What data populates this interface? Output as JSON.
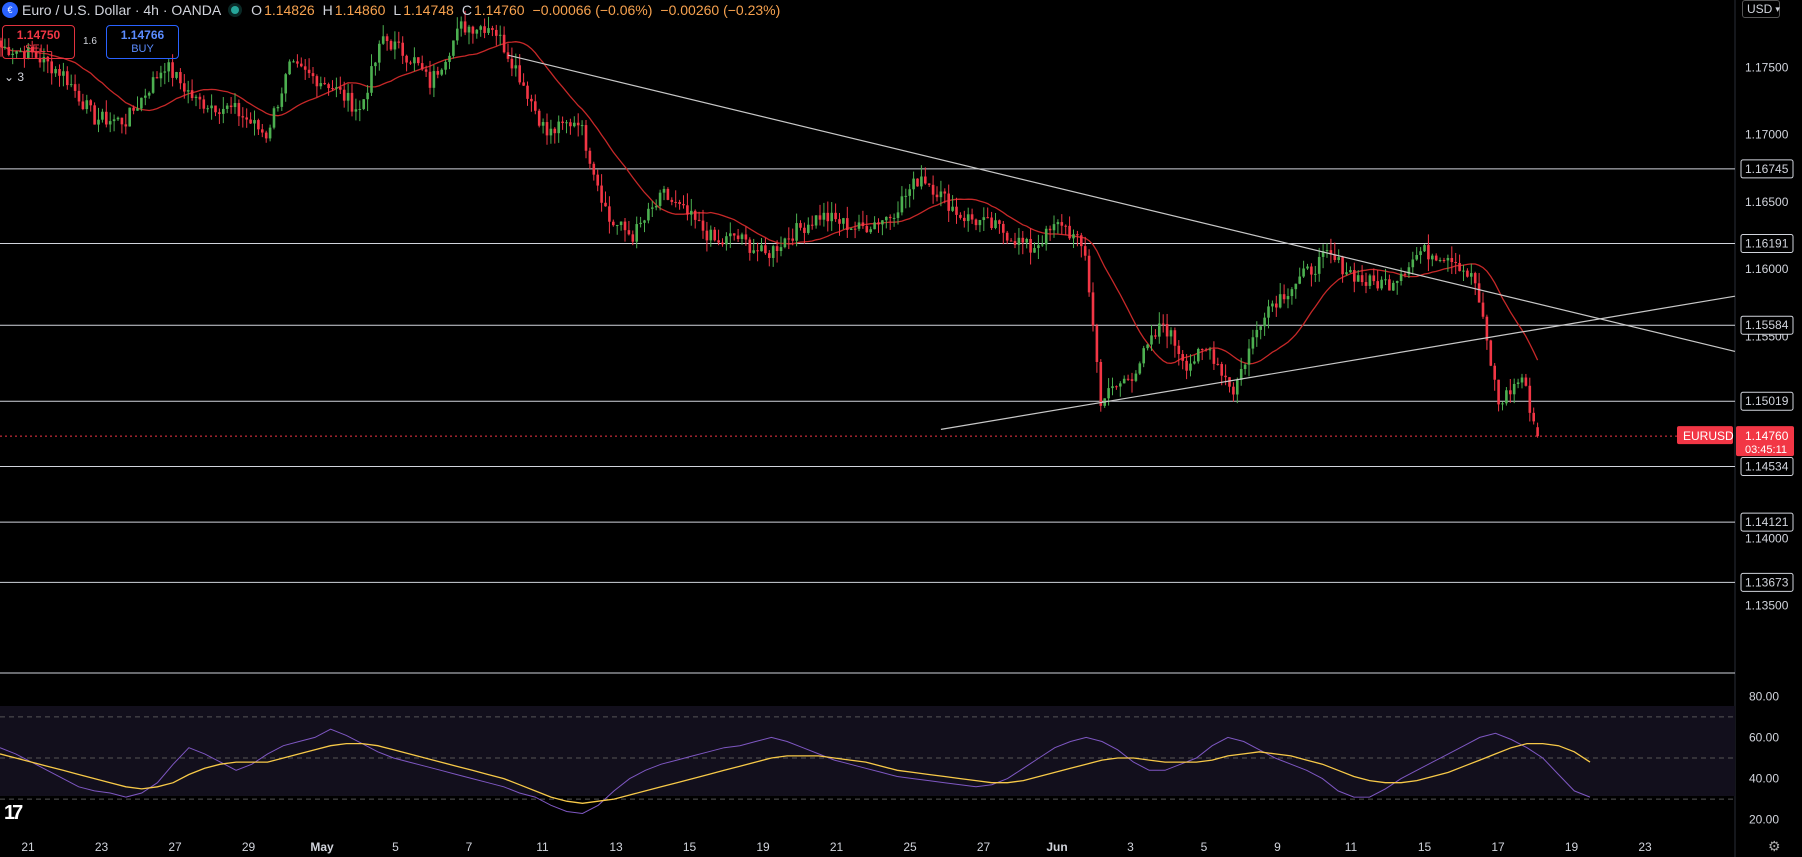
{
  "header": {
    "title": "Euro / U.S. Dollar · 4h · OANDA",
    "open_label": "O",
    "open": "1.14826",
    "high_label": "H",
    "high": "1.14860",
    "low_label": "L",
    "low": "1.14748",
    "close_label": "C",
    "close": "1.14760",
    "change": "−0.00066 (−0.06%)",
    "change2": "−0.00260 (−0.23%)"
  },
  "trade": {
    "sell_price": "1.14750",
    "sell_label": "SELL",
    "buy_price": "1.14766",
    "buy_label": "BUY",
    "spread": "1.6"
  },
  "indicators_toggle": "3",
  "currency_button": "USD",
  "colors": {
    "up": "#26a69a",
    "up_body": "#4caf50",
    "down": "#f23645",
    "ma": "#c62828",
    "rsi": "#7e57c2",
    "rsi_ma": "#f7c948",
    "hline": "#d1d4dc",
    "tag_bg": "#f23645"
  },
  "chart_data": [
    {
      "type": "candlestick",
      "symbol": "EURUSD",
      "last_price": "1.14760",
      "countdown": "03:45:11",
      "x_ticks": [
        "21",
        "23",
        "27",
        "29",
        "May",
        "5",
        "7",
        "11",
        "13",
        "15",
        "19",
        "21",
        "25",
        "27",
        "Jun",
        "3",
        "5",
        "9",
        "11",
        "15",
        "17",
        "19",
        "23"
      ],
      "y_ticks": [
        "1.17500",
        "1.17000",
        "1.16500",
        "1.16000",
        "1.15500",
        "1.15000",
        "1.14500",
        "1.14000",
        "1.13500"
      ],
      "y_range": [
        1.13,
        1.18
      ],
      "horizontal_levels": [
        "1.16745",
        "1.16191",
        "1.15584",
        "1.15019",
        "1.14534",
        "1.14121",
        "1.13673"
      ],
      "trendlines": [
        {
          "name": "descending",
          "from": {
            "bar": 130,
            "price": 1.1759
          },
          "to": {
            "bar": 383,
            "price": 1.1582
          }
        },
        {
          "name": "ascending",
          "from": {
            "bar": 241,
            "price": 1.1481
          },
          "to": {
            "bar": 383,
            "price": 1.155
          }
        }
      ],
      "moving_average": "red",
      "anchors": [
        [
          0,
          1.1765
        ],
        [
          8,
          1.176
        ],
        [
          16,
          1.1745
        ],
        [
          24,
          1.1712
        ],
        [
          32,
          1.171
        ],
        [
          42,
          1.1752
        ],
        [
          50,
          1.1725
        ],
        [
          60,
          1.1718
        ],
        [
          68,
          1.17
        ],
        [
          74,
          1.175
        ],
        [
          84,
          1.1738
        ],
        [
          92,
          1.1718
        ],
        [
          98,
          1.1772
        ],
        [
          106,
          1.1755
        ],
        [
          110,
          1.1738
        ],
        [
          118,
          1.178
        ],
        [
          126,
          1.1781
        ],
        [
          132,
          1.175
        ],
        [
          140,
          1.17
        ],
        [
          148,
          1.1712
        ],
        [
          156,
          1.1636
        ],
        [
          162,
          1.1625
        ],
        [
          170,
          1.1655
        ],
        [
          178,
          1.1635
        ],
        [
          184,
          1.1618
        ],
        [
          188,
          1.1625
        ],
        [
          196,
          1.161
        ],
        [
          202,
          1.1625
        ],
        [
          210,
          1.164
        ],
        [
          220,
          1.163
        ],
        [
          228,
          1.164
        ],
        [
          236,
          1.167
        ],
        [
          246,
          1.164
        ],
        [
          256,
          1.163
        ],
        [
          264,
          1.1615
        ],
        [
          272,
          1.1635
        ],
        [
          278,
          1.1612
        ],
        [
          282,
          1.1503
        ],
        [
          290,
          1.1522
        ],
        [
          298,
          1.156
        ],
        [
          304,
          1.153
        ],
        [
          310,
          1.154
        ],
        [
          316,
          1.151
        ],
        [
          324,
          1.157
        ],
        [
          332,
          1.159
        ],
        [
          340,
          1.161
        ],
        [
          350,
          1.159
        ],
        [
          356,
          1.159
        ],
        [
          364,
          1.1613
        ],
        [
          372,
          1.161
        ],
        [
          378,
          1.159
        ],
        [
          384,
          1.15
        ],
        [
          390,
          1.152
        ],
        [
          394,
          1.1476
        ]
      ]
    },
    {
      "type": "line",
      "name": "RSI",
      "y_ticks": [
        "80.00",
        "60.00",
        "40.00",
        "20.00"
      ],
      "y_range": [
        15,
        85
      ],
      "levels": [
        70,
        50,
        30
      ],
      "series": [
        {
          "values": [
            55,
            52,
            48,
            44,
            40,
            36,
            34,
            33,
            31,
            33,
            38,
            47,
            55,
            52,
            48,
            44,
            47,
            52,
            56,
            58,
            60,
            64,
            61,
            57,
            53,
            50,
            48,
            46,
            44,
            42,
            40,
            38,
            36,
            33,
            31,
            27,
            24,
            23,
            27,
            34,
            40,
            44,
            47,
            49,
            51,
            53,
            55,
            56,
            58,
            60,
            58,
            55,
            52,
            49,
            47,
            45,
            43,
            41,
            40,
            39,
            38,
            37,
            36,
            37,
            40,
            45,
            50,
            55,
            58,
            60,
            58,
            54,
            48,
            44,
            44,
            47,
            50,
            56,
            60,
            58,
            54,
            50,
            47,
            44,
            40,
            34,
            31,
            31,
            35,
            40,
            44,
            48,
            52,
            56,
            60,
            62,
            59,
            55,
            50,
            42,
            34,
            31
          ]
        },
        {
          "values": [
            52,
            50,
            48,
            46,
            44,
            42,
            40,
            38,
            36,
            35,
            36,
            38,
            42,
            45,
            47,
            48,
            48,
            48,
            50,
            52,
            54,
            56,
            57,
            57,
            56,
            54,
            52,
            50,
            48,
            46,
            44,
            42,
            40,
            37,
            34,
            31,
            29,
            28,
            29,
            30,
            32,
            34,
            36,
            38,
            40,
            42,
            44,
            46,
            48,
            50,
            51,
            51,
            51,
            50,
            49,
            48,
            46,
            44,
            43,
            42,
            41,
            40,
            39,
            38,
            38,
            39,
            41,
            43,
            45,
            47,
            49,
            50,
            50,
            49,
            48,
            48,
            48,
            49,
            51,
            52,
            53,
            52,
            51,
            49,
            47,
            44,
            41,
            39,
            38,
            38,
            39,
            41,
            43,
            46,
            49,
            52,
            55,
            57,
            57,
            56,
            53,
            48
          ]
        }
      ]
    }
  ]
}
